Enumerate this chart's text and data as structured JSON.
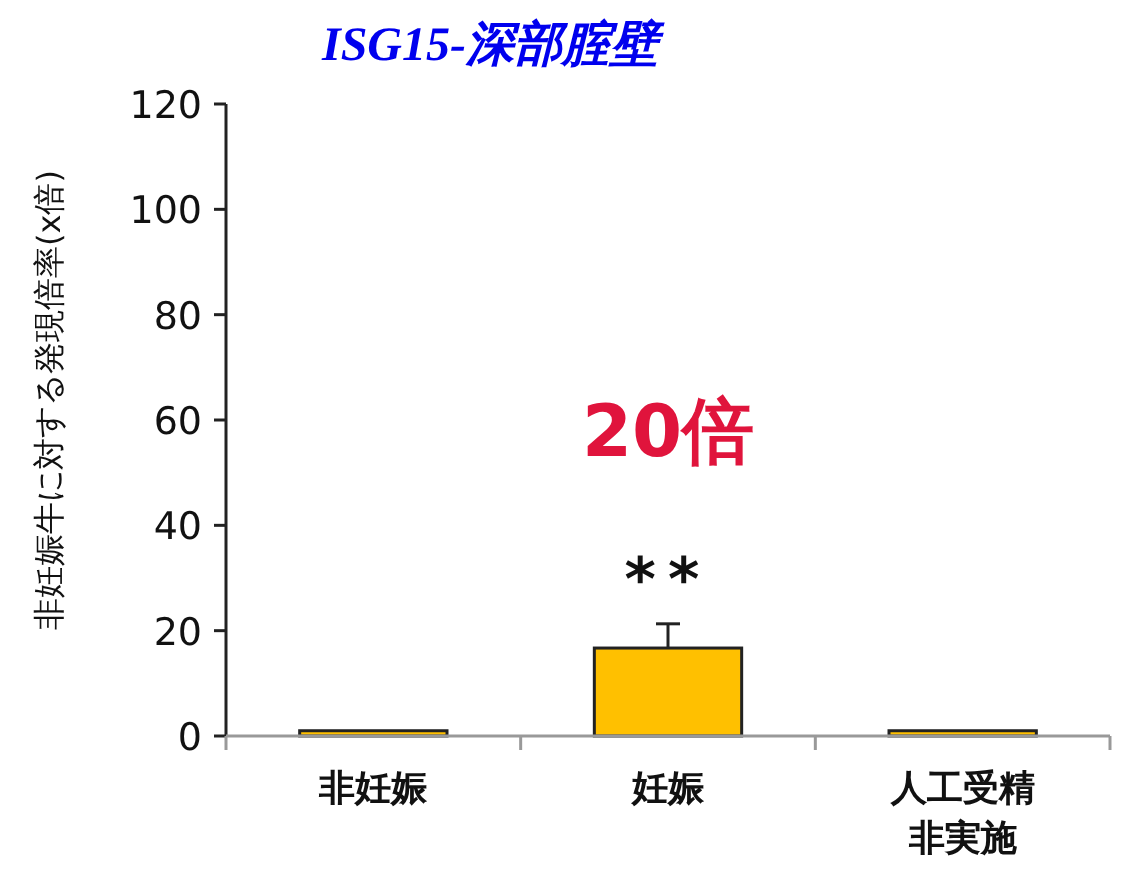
{
  "chart_data": {
    "type": "bar",
    "title": "ISG15-深部腟壁",
    "ylabel": "非妊娠牛に対する発現倍率(x倍)",
    "categories": [
      "非妊娠",
      "妊娠",
      "人工受精非実施"
    ],
    "values": [
      1,
      16.7,
      1
    ],
    "errors": [
      null,
      4.6,
      null
    ],
    "color": "#ffc000",
    "ylim": [
      0,
      120
    ],
    "yticks": [
      0,
      20,
      40,
      60,
      80,
      100,
      120
    ],
    "grid": false,
    "annotations": [
      "20倍",
      "**"
    ]
  }
}
